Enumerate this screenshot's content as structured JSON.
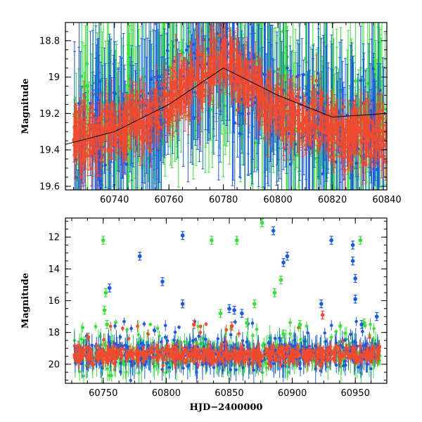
{
  "chart_data": [
    {
      "type": "scatter",
      "panel": "top",
      "title": "",
      "xlabel": "",
      "ylabel": "Magnitude",
      "xlim": [
        60722,
        60840
      ],
      "ylim": [
        19.62,
        18.7
      ],
      "y_inverted": true,
      "xticks": [
        60740,
        60760,
        60780,
        60800,
        60820,
        60840
      ],
      "xtick_labels": [
        "60740",
        "60760",
        "60780",
        "60800",
        "60820",
        "60840"
      ],
      "yticks": [
        18.8,
        19.0,
        19.2,
        19.4,
        19.6
      ],
      "ytick_labels": [
        "18.8",
        "19",
        "19.2",
        "19.4",
        "19.6"
      ],
      "series": [
        {
          "name": "green",
          "color": "#33e233",
          "values_note": "dense photometry with error bars",
          "points": [
            [
              60726,
              19.35
            ],
            [
              60730,
              19.05
            ],
            [
              60734,
              19.25
            ],
            [
              60738,
              19.1
            ],
            [
              60742,
              19.3
            ],
            [
              60746,
              19.2
            ],
            [
              60750,
              19.15
            ],
            [
              60754,
              19.25
            ],
            [
              60758,
              18.95
            ],
            [
              60762,
              19.05
            ],
            [
              60766,
              18.9
            ],
            [
              60770,
              19.0
            ],
            [
              60774,
              18.85
            ],
            [
              60778,
              18.9
            ],
            [
              60782,
              19.0
            ],
            [
              60786,
              18.95
            ],
            [
              60790,
              19.1
            ],
            [
              60794,
              19.05
            ],
            [
              60798,
              19.2
            ],
            [
              60802,
              19.0
            ],
            [
              60806,
              19.3
            ],
            [
              60810,
              19.1
            ],
            [
              60814,
              19.25
            ],
            [
              60818,
              19.3
            ],
            [
              60822,
              19.2
            ],
            [
              60826,
              19.35
            ],
            [
              60830,
              19.25
            ],
            [
              60834,
              19.3
            ],
            [
              60838,
              19.2
            ]
          ]
        },
        {
          "name": "blue",
          "color": "#1a5ae8",
          "values_note": "dense photometry with error bars",
          "points": [
            [
              60728,
              19.4
            ],
            [
              60732,
              19.3
            ],
            [
              60736,
              19.35
            ],
            [
              60740,
              19.25
            ],
            [
              60744,
              19.3
            ],
            [
              60748,
              19.2
            ],
            [
              60752,
              19.25
            ],
            [
              60756,
              19.15
            ],
            [
              60760,
              19.1
            ],
            [
              60764,
              19.05
            ],
            [
              60768,
              19.0
            ],
            [
              60772,
              18.95
            ],
            [
              60776,
              18.9
            ],
            [
              60780,
              18.85
            ],
            [
              60784,
              18.95
            ],
            [
              60788,
              19.0
            ],
            [
              60792,
              19.05
            ],
            [
              60796,
              19.1
            ],
            [
              60800,
              19.2
            ],
            [
              60804,
              19.25
            ],
            [
              60808,
              19.15
            ],
            [
              60812,
              19.3
            ],
            [
              60816,
              19.2
            ],
            [
              60820,
              19.3
            ],
            [
              60824,
              19.35
            ],
            [
              60828,
              19.3
            ],
            [
              60832,
              19.25
            ],
            [
              60836,
              19.3
            ],
            [
              60839,
              19.2
            ]
          ]
        },
        {
          "name": "red",
          "color": "#f24a2e",
          "values_note": "dense photometry with error bars",
          "points": [
            [
              60726,
              19.3
            ],
            [
              60730,
              19.35
            ],
            [
              60734,
              19.3
            ],
            [
              60738,
              19.28
            ],
            [
              60742,
              19.32
            ],
            [
              60746,
              19.25
            ],
            [
              60750,
              19.25
            ],
            [
              60754,
              19.2
            ],
            [
              60758,
              19.15
            ],
            [
              60762,
              19.1
            ],
            [
              60766,
              19.05
            ],
            [
              60770,
              19.0
            ],
            [
              60774,
              18.98
            ],
            [
              60778,
              18.9
            ],
            [
              60782,
              18.95
            ],
            [
              60786,
              19.0
            ],
            [
              60790,
              19.05
            ],
            [
              60794,
              19.1
            ],
            [
              60798,
              19.15
            ],
            [
              60802,
              19.2
            ],
            [
              60806,
              19.22
            ],
            [
              60810,
              19.25
            ],
            [
              60814,
              19.2
            ],
            [
              60818,
              19.28
            ],
            [
              60822,
              19.3
            ],
            [
              60826,
              19.32
            ],
            [
              60830,
              19.3
            ],
            [
              60834,
              19.32
            ],
            [
              60838,
              19.3
            ]
          ]
        }
      ],
      "model_curve": {
        "color": "#000000",
        "points": [
          [
            60722,
            19.37
          ],
          [
            60740,
            19.3
          ],
          [
            60760,
            19.15
          ],
          [
            60780,
            18.95
          ],
          [
            60800,
            19.1
          ],
          [
            60820,
            19.22
          ],
          [
            60840,
            19.2
          ]
        ]
      }
    },
    {
      "type": "scatter",
      "panel": "bottom",
      "title": "",
      "xlabel": "HJD−2400000",
      "ylabel": "Magnitude",
      "xlim": [
        60720,
        60975
      ],
      "ylim": [
        21.2,
        10.8
      ],
      "y_inverted": true,
      "xticks": [
        60750,
        60800,
        60850,
        60900,
        60950
      ],
      "xtick_labels": [
        "60750",
        "60800",
        "60850",
        "60900",
        "60950"
      ],
      "yticks": [
        12,
        14,
        16,
        18,
        20
      ],
      "ytick_labels": [
        "12",
        "14",
        "16",
        "18",
        "20"
      ],
      "series": [
        {
          "name": "green",
          "color": "#33e233",
          "outliers": [
            [
              60750,
              12.2
            ],
            [
              60752,
              15.5
            ],
            [
              60751,
              16.6
            ],
            [
              60753,
              17.5
            ],
            [
              60836,
              12.2
            ],
            [
              60856,
              12.2
            ],
            [
              60876,
              11.1
            ],
            [
              60886,
              15.5
            ],
            [
              60891,
              14.7
            ],
            [
              60893,
              18.1
            ],
            [
              60906,
              17.5
            ],
            [
              60954,
              12.2
            ],
            [
              60957,
              17.4
            ],
            [
              60870,
              16.2
            ],
            [
              60864,
              17.4
            ],
            [
              60843,
              16.8
            ]
          ]
        },
        {
          "name": "blue",
          "color": "#1a5ae8",
          "outliers": [
            [
              60755,
              15.2
            ],
            [
              60779,
              13.2
            ],
            [
              60797,
              14.8
            ],
            [
              60813,
              11.9
            ],
            [
              60813,
              16.2
            ],
            [
              60850,
              16.5
            ],
            [
              60854,
              16.6
            ],
            [
              60860,
              16.8
            ],
            [
              60885,
              11.6
            ],
            [
              60893,
              13.6
            ],
            [
              60896,
              13.2
            ],
            [
              60923,
              16.2
            ],
            [
              60931,
              12.2
            ],
            [
              60948,
              12.5
            ],
            [
              60948,
              13.5
            ],
            [
              60950,
              14.6
            ],
            [
              60950,
              15.9
            ],
            [
              60955,
              17.5
            ],
            [
              60967,
              17.0
            ]
          ]
        },
        {
          "name": "red",
          "color": "#f24a2e",
          "outliers": [
            [
              60738,
              18.3
            ],
            [
              60822,
              17.5
            ],
            [
              60852,
              17.6
            ],
            [
              60924,
              16.9
            ]
          ]
        }
      ],
      "baseline_mag": 19.4
    }
  ]
}
